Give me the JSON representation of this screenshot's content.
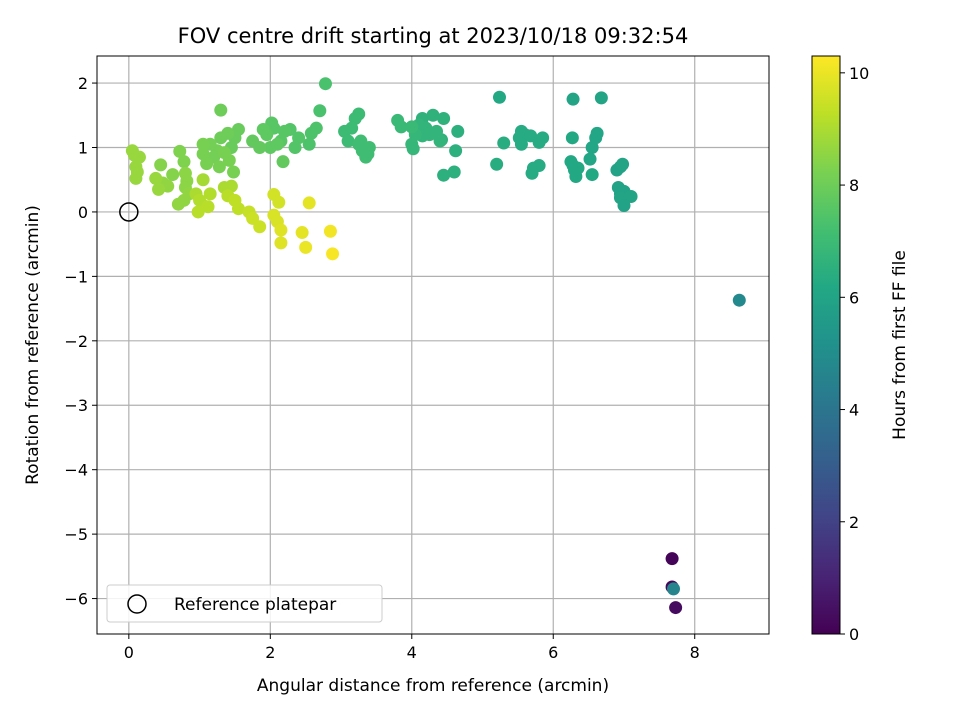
{
  "chart_data": {
    "type": "scatter",
    "title": "FOV centre drift starting at 2023/10/18 09:32:54",
    "xlabel": "Angular distance from reference (arcmin)",
    "ylabel": "Rotation from reference (arcmin)",
    "xlim": [
      -0.45,
      9.05
    ],
    "ylim": [
      -6.55,
      2.42
    ],
    "x_ticks": [
      0,
      2,
      4,
      6,
      8
    ],
    "y_ticks": [
      -6,
      -5,
      -4,
      -3,
      -2,
      -1,
      0,
      1,
      2
    ],
    "grid": true,
    "legend": {
      "location": "lower-left",
      "entries": [
        "Reference platepar"
      ]
    },
    "colorbar": {
      "label": "Hours from first FF file",
      "range": [
        0,
        10.3
      ],
      "ticks": [
        0,
        2,
        4,
        6,
        8,
        10
      ],
      "colormap": "viridis"
    },
    "reference_point": {
      "x": 0,
      "y": 0,
      "label": "Reference platepar"
    },
    "points": [
      {
        "x": 7.68,
        "y": -5.38,
        "h": 0.1
      },
      {
        "x": 7.68,
        "y": -5.82,
        "h": 0.2
      },
      {
        "x": 7.73,
        "y": -6.14,
        "h": 0.3
      },
      {
        "x": 7.7,
        "y": -5.85,
        "h": 4.6
      },
      {
        "x": 8.63,
        "y": -1.37,
        "h": 4.8
      },
      {
        "x": 6.68,
        "y": 1.77,
        "h": 6.0
      },
      {
        "x": 6.28,
        "y": 1.75,
        "h": 6.0
      },
      {
        "x": 5.24,
        "y": 1.78,
        "h": 6.2
      },
      {
        "x": 6.9,
        "y": 0.65,
        "h": 5.9
      },
      {
        "x": 6.95,
        "y": 0.7,
        "h": 5.9
      },
      {
        "x": 6.98,
        "y": 0.74,
        "h": 6.0
      },
      {
        "x": 6.92,
        "y": 0.38,
        "h": 5.9
      },
      {
        "x": 6.95,
        "y": 0.28,
        "h": 5.9
      },
      {
        "x": 7.0,
        "y": 0.32,
        "h": 5.9
      },
      {
        "x": 7.1,
        "y": 0.24,
        "h": 6.0
      },
      {
        "x": 6.95,
        "y": 0.22,
        "h": 6.0
      },
      {
        "x": 7.0,
        "y": 0.1,
        "h": 5.9
      },
      {
        "x": 6.55,
        "y": 1.0,
        "h": 6.1
      },
      {
        "x": 6.6,
        "y": 1.15,
        "h": 6.1
      },
      {
        "x": 6.62,
        "y": 1.22,
        "h": 6.1
      },
      {
        "x": 6.27,
        "y": 1.15,
        "h": 6.2
      },
      {
        "x": 6.52,
        "y": 0.82,
        "h": 6.1
      },
      {
        "x": 6.55,
        "y": 0.58,
        "h": 6.2
      },
      {
        "x": 6.25,
        "y": 0.78,
        "h": 6.2
      },
      {
        "x": 6.28,
        "y": 0.72,
        "h": 6.2
      },
      {
        "x": 6.3,
        "y": 0.65,
        "h": 6.2
      },
      {
        "x": 6.32,
        "y": 0.55,
        "h": 6.2
      },
      {
        "x": 6.35,
        "y": 0.68,
        "h": 6.2
      },
      {
        "x": 5.55,
        "y": 1.25,
        "h": 6.3
      },
      {
        "x": 5.6,
        "y": 1.2,
        "h": 6.3
      },
      {
        "x": 5.52,
        "y": 1.15,
        "h": 6.3
      },
      {
        "x": 5.55,
        "y": 1.05,
        "h": 6.3
      },
      {
        "x": 5.68,
        "y": 1.18,
        "h": 6.3
      },
      {
        "x": 5.8,
        "y": 1.08,
        "h": 6.3
      },
      {
        "x": 5.85,
        "y": 1.15,
        "h": 6.3
      },
      {
        "x": 5.72,
        "y": 0.68,
        "h": 6.3
      },
      {
        "x": 5.8,
        "y": 0.72,
        "h": 6.3
      },
      {
        "x": 5.7,
        "y": 0.6,
        "h": 6.3
      },
      {
        "x": 5.3,
        "y": 1.07,
        "h": 6.4
      },
      {
        "x": 5.2,
        "y": 0.74,
        "h": 6.4
      },
      {
        "x": 4.65,
        "y": 1.25,
        "h": 6.5
      },
      {
        "x": 4.62,
        "y": 0.95,
        "h": 6.5
      },
      {
        "x": 4.6,
        "y": 0.62,
        "h": 6.5
      },
      {
        "x": 4.45,
        "y": 0.57,
        "h": 6.5
      },
      {
        "x": 4.42,
        "y": 1.12,
        "h": 6.6
      },
      {
        "x": 4.45,
        "y": 1.45,
        "h": 6.6
      },
      {
        "x": 4.3,
        "y": 1.5,
        "h": 6.6
      },
      {
        "x": 4.15,
        "y": 1.45,
        "h": 6.6
      },
      {
        "x": 4.2,
        "y": 1.3,
        "h": 6.7
      },
      {
        "x": 4.1,
        "y": 1.35,
        "h": 6.7
      },
      {
        "x": 4.25,
        "y": 1.2,
        "h": 6.7
      },
      {
        "x": 4.35,
        "y": 1.25,
        "h": 6.7
      },
      {
        "x": 4.4,
        "y": 1.1,
        "h": 6.7
      },
      {
        "x": 4.15,
        "y": 1.18,
        "h": 6.7
      },
      {
        "x": 4.0,
        "y": 1.05,
        "h": 6.8
      },
      {
        "x": 4.02,
        "y": 0.98,
        "h": 6.8
      },
      {
        "x": 4.05,
        "y": 1.2,
        "h": 6.8
      },
      {
        "x": 4.0,
        "y": 1.32,
        "h": 6.9
      },
      {
        "x": 3.85,
        "y": 1.32,
        "h": 6.9
      },
      {
        "x": 3.8,
        "y": 1.42,
        "h": 6.9
      },
      {
        "x": 3.25,
        "y": 1.52,
        "h": 7.0
      },
      {
        "x": 3.2,
        "y": 1.45,
        "h": 7.0
      },
      {
        "x": 3.15,
        "y": 1.3,
        "h": 7.0
      },
      {
        "x": 3.05,
        "y": 1.25,
        "h": 7.0
      },
      {
        "x": 3.1,
        "y": 1.1,
        "h": 7.0
      },
      {
        "x": 3.25,
        "y": 1.05,
        "h": 7.1
      },
      {
        "x": 3.3,
        "y": 0.95,
        "h": 7.1
      },
      {
        "x": 3.35,
        "y": 0.85,
        "h": 7.1
      },
      {
        "x": 3.4,
        "y": 1.0,
        "h": 7.1
      },
      {
        "x": 3.38,
        "y": 0.9,
        "h": 7.1
      },
      {
        "x": 3.32,
        "y": 1.0,
        "h": 7.1
      },
      {
        "x": 3.28,
        "y": 1.1,
        "h": 7.1
      },
      {
        "x": 2.78,
        "y": 1.99,
        "h": 7.3
      },
      {
        "x": 2.7,
        "y": 1.57,
        "h": 7.3
      },
      {
        "x": 2.65,
        "y": 1.3,
        "h": 7.4
      },
      {
        "x": 2.58,
        "y": 1.22,
        "h": 7.4
      },
      {
        "x": 2.55,
        "y": 1.05,
        "h": 7.4
      },
      {
        "x": 2.4,
        "y": 1.15,
        "h": 7.5
      },
      {
        "x": 2.35,
        "y": 1.0,
        "h": 7.5
      },
      {
        "x": 2.28,
        "y": 1.28,
        "h": 7.5
      },
      {
        "x": 2.2,
        "y": 1.25,
        "h": 7.6
      },
      {
        "x": 2.15,
        "y": 1.1,
        "h": 7.6
      },
      {
        "x": 2.05,
        "y": 1.3,
        "h": 7.6
      },
      {
        "x": 2.02,
        "y": 1.38,
        "h": 7.6
      },
      {
        "x": 2.0,
        "y": 1.0,
        "h": 7.7
      },
      {
        "x": 1.95,
        "y": 1.2,
        "h": 7.7
      },
      {
        "x": 1.9,
        "y": 1.28,
        "h": 7.7
      },
      {
        "x": 2.1,
        "y": 1.05,
        "h": 7.7
      },
      {
        "x": 2.18,
        "y": 0.78,
        "h": 7.8
      },
      {
        "x": 1.85,
        "y": 1.0,
        "h": 7.8
      },
      {
        "x": 1.75,
        "y": 1.1,
        "h": 7.8
      },
      {
        "x": 1.55,
        "y": 1.28,
        "h": 7.9
      },
      {
        "x": 1.5,
        "y": 1.15,
        "h": 7.9
      },
      {
        "x": 1.45,
        "y": 1.0,
        "h": 7.9
      },
      {
        "x": 1.4,
        "y": 1.22,
        "h": 8.0
      },
      {
        "x": 1.3,
        "y": 1.58,
        "h": 8.0
      },
      {
        "x": 1.3,
        "y": 1.15,
        "h": 8.0
      },
      {
        "x": 1.25,
        "y": 0.95,
        "h": 8.1
      },
      {
        "x": 1.2,
        "y": 0.85,
        "h": 8.1
      },
      {
        "x": 1.15,
        "y": 1.05,
        "h": 8.1
      },
      {
        "x": 1.05,
        "y": 1.05,
        "h": 8.2
      },
      {
        "x": 1.05,
        "y": 0.9,
        "h": 8.2
      },
      {
        "x": 1.1,
        "y": 0.75,
        "h": 8.2
      },
      {
        "x": 1.28,
        "y": 0.7,
        "h": 8.2
      },
      {
        "x": 1.48,
        "y": 0.62,
        "h": 8.2
      },
      {
        "x": 1.42,
        "y": 0.8,
        "h": 8.2
      },
      {
        "x": 1.35,
        "y": 0.92,
        "h": 8.2
      },
      {
        "x": 0.72,
        "y": 0.94,
        "h": 8.3
      },
      {
        "x": 0.78,
        "y": 0.78,
        "h": 8.3
      },
      {
        "x": 0.45,
        "y": 0.73,
        "h": 8.4
      },
      {
        "x": 0.62,
        "y": 0.58,
        "h": 8.4
      },
      {
        "x": 0.8,
        "y": 0.6,
        "h": 8.5
      },
      {
        "x": 0.82,
        "y": 0.48,
        "h": 8.5
      },
      {
        "x": 0.8,
        "y": 0.38,
        "h": 8.5
      },
      {
        "x": 0.85,
        "y": 0.28,
        "h": 8.6
      },
      {
        "x": 0.78,
        "y": 0.18,
        "h": 8.6
      },
      {
        "x": 0.7,
        "y": 0.12,
        "h": 8.6
      },
      {
        "x": 0.55,
        "y": 0.4,
        "h": 8.6
      },
      {
        "x": 0.48,
        "y": 0.45,
        "h": 8.6
      },
      {
        "x": 0.42,
        "y": 0.35,
        "h": 8.7
      },
      {
        "x": 0.38,
        "y": 0.52,
        "h": 8.7
      },
      {
        "x": 0.05,
        "y": 0.95,
        "h": 8.7
      },
      {
        "x": 0.08,
        "y": 0.88,
        "h": 8.7
      },
      {
        "x": 0.15,
        "y": 0.85,
        "h": 8.7
      },
      {
        "x": 0.1,
        "y": 0.7,
        "h": 8.7
      },
      {
        "x": 0.12,
        "y": 0.62,
        "h": 8.7
      },
      {
        "x": 0.1,
        "y": 0.52,
        "h": 8.7
      },
      {
        "x": 1.05,
        "y": 0.5,
        "h": 8.9
      },
      {
        "x": 1.35,
        "y": 0.38,
        "h": 9.0
      },
      {
        "x": 1.45,
        "y": 0.4,
        "h": 9.0
      },
      {
        "x": 0.95,
        "y": 0.28,
        "h": 9.0
      },
      {
        "x": 1.15,
        "y": 0.28,
        "h": 9.1
      },
      {
        "x": 1.0,
        "y": 0.18,
        "h": 9.1
      },
      {
        "x": 1.05,
        "y": 0.1,
        "h": 9.1
      },
      {
        "x": 1.12,
        "y": 0.08,
        "h": 9.2
      },
      {
        "x": 0.98,
        "y": 0.0,
        "h": 9.2
      },
      {
        "x": 1.4,
        "y": 0.25,
        "h": 9.2
      },
      {
        "x": 1.5,
        "y": 0.18,
        "h": 9.3
      },
      {
        "x": 1.55,
        "y": 0.05,
        "h": 9.3
      },
      {
        "x": 1.7,
        "y": 0.0,
        "h": 9.4
      },
      {
        "x": 1.85,
        "y": -0.23,
        "h": 9.5
      },
      {
        "x": 1.75,
        "y": -0.1,
        "h": 9.5
      },
      {
        "x": 2.05,
        "y": 0.27,
        "h": 9.6
      },
      {
        "x": 2.12,
        "y": 0.15,
        "h": 9.6
      },
      {
        "x": 2.05,
        "y": -0.05,
        "h": 9.7
      },
      {
        "x": 2.1,
        "y": -0.15,
        "h": 9.7
      },
      {
        "x": 2.15,
        "y": -0.28,
        "h": 9.8
      },
      {
        "x": 2.15,
        "y": -0.48,
        "h": 9.8
      },
      {
        "x": 2.55,
        "y": 0.14,
        "h": 9.9
      },
      {
        "x": 2.45,
        "y": -0.32,
        "h": 9.9
      },
      {
        "x": 2.5,
        "y": -0.55,
        "h": 10.0
      },
      {
        "x": 2.85,
        "y": -0.3,
        "h": 10.1
      },
      {
        "x": 2.88,
        "y": -0.65,
        "h": 10.2
      }
    ]
  }
}
